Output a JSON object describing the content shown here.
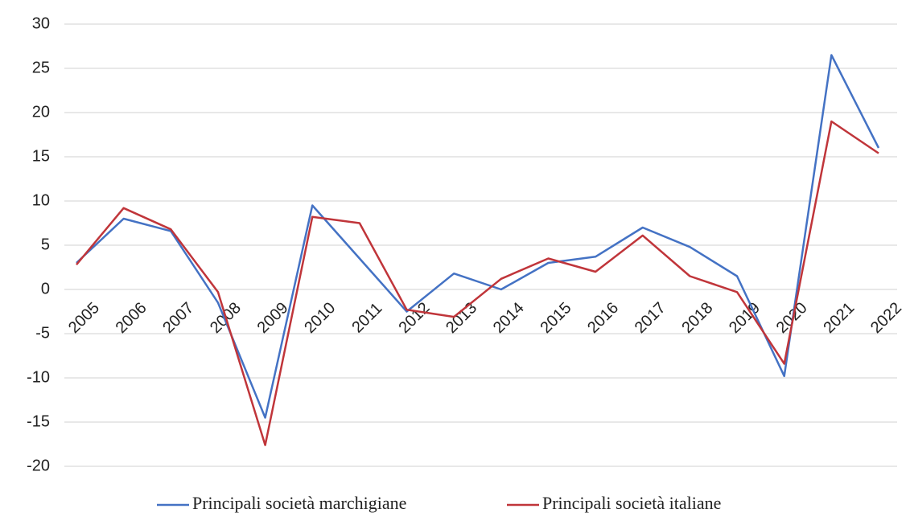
{
  "chart_data": {
    "type": "line",
    "categories": [
      "2005",
      "2006",
      "2007",
      "2008",
      "2009",
      "2010",
      "2011",
      "2012",
      "2013",
      "2014",
      "2015",
      "2016",
      "2017",
      "2018",
      "2019",
      "2020",
      "2021",
      "2022"
    ],
    "series": [
      {
        "name": "Principali società marchigiane",
        "color": "#4472c4",
        "values": [
          3,
          8,
          6.6,
          -1.5,
          -14.5,
          9.5,
          3.5,
          -2.5,
          1.8,
          0,
          3,
          3.7,
          7,
          4.8,
          1.5,
          -9.8,
          26.5,
          16
        ]
      },
      {
        "name": "Principali società italiane",
        "color": "#c0353a",
        "values": [
          2.8,
          9.2,
          6.8,
          -0.3,
          -17.6,
          8.2,
          7.5,
          -2.3,
          -3.1,
          1.2,
          3.5,
          2,
          6.1,
          1.5,
          -0.3,
          -8.4,
          19,
          15.4
        ]
      }
    ],
    "ylim": [
      -20,
      30
    ],
    "yticks": [
      -20,
      -15,
      -10,
      -5,
      0,
      5,
      10,
      15,
      20,
      25,
      30
    ],
    "grid": true,
    "legend": "bottom"
  }
}
